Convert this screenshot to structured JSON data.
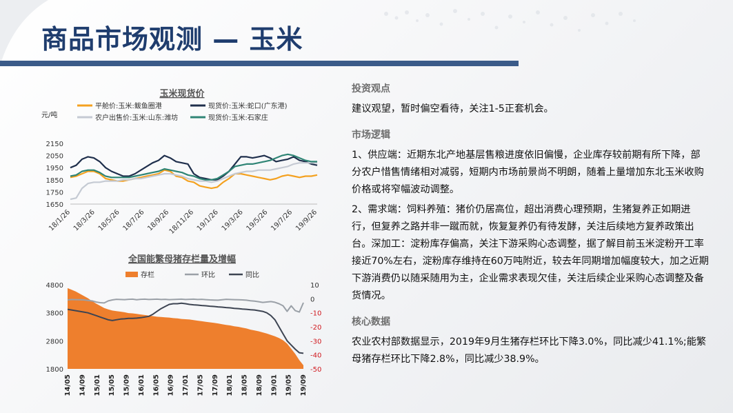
{
  "page": {
    "title": "商品市场观测 — 玉米"
  },
  "right_panel": {
    "sections": [
      {
        "title": "投资观点",
        "paragraphs": [
          "建议观望，暂时偏空看待，关注1-5正套机会。"
        ]
      },
      {
        "title": "市场逻辑",
        "paragraphs": [
          "1、供应端：近期东北产地基层售粮进度依旧偏慢，企业库存较前期有所下降，部分农户惜售情绪相对减弱，短期内市场前景尚不明朗，随着上量增加东北玉米收购价格或将窄幅波动调整。",
          "2、需求端：饲料养殖：猪价仍居高位，超出消费心理预期，生猪复养正如期进行，但复养之路并非一蹴而就，恢复复养仍有待发酵，关注后续地方复养政策出台。深加工：淀粉库存偏高，关注下游采购心态调整，据了解目前玉米淀粉开工率接近70%左右，淀粉库存维持在60万吨附近，较去年同期增加幅度较大，加之近期下游消费仍以随采随用为主，企业需求表现欠佳，关注后续企业采购心态调整及备货情况。"
        ]
      },
      {
        "title": "核心数据",
        "paragraphs": [
          "农业农村部数据显示，2019年9月生猪存栏环比下降3.0%，同比减少41.1%;能繁母猪存栏环比下降2.8%，同比减少38.9%。"
        ]
      }
    ]
  },
  "chart_data": [
    {
      "type": "line",
      "title": "玉米现货价",
      "ylabel": "元/吨",
      "ylim": [
        1650,
        2150
      ],
      "yticks": [
        1650,
        1750,
        1850,
        1950,
        2050,
        2150
      ],
      "xtick_labels": [
        "18/1/26",
        "18/3/26",
        "18/5/26",
        "18/7/26",
        "18/9/26",
        "18/11/26",
        "19/1/26",
        "19/3/26",
        "19/5/26",
        "19/7/26",
        "19/9/26"
      ],
      "series": [
        {
          "name": "平舱价:玉米:鲅鱼圈港",
          "color": "#f4a11f",
          "values": [
            1870,
            1880,
            1900,
            1920,
            1920,
            1900,
            1860,
            1850,
            1840,
            1840,
            1850,
            1860,
            1870,
            1880,
            1890,
            1900,
            1930,
            1920,
            1880,
            1870,
            1840,
            1830,
            1800,
            1790,
            1780,
            1790,
            1830,
            1860,
            1900,
            1900,
            1890,
            1880,
            1870,
            1860,
            1850,
            1860,
            1880,
            1890,
            1880,
            1870,
            1880,
            1880,
            1890
          ]
        },
        {
          "name": "现货价:玉米:蛇口(广东港)",
          "color": "#1f2f4c",
          "values": [
            1950,
            1970,
            2020,
            2040,
            2030,
            2000,
            1950,
            1920,
            1900,
            1880,
            1880,
            1900,
            1930,
            1960,
            1990,
            2010,
            2050,
            2030,
            2000,
            1990,
            1980,
            1900,
            1870,
            1860,
            1850,
            1850,
            1880,
            1920,
            1980,
            2040,
            2040,
            2030,
            2040,
            2050,
            2030,
            2000,
            2010,
            2020,
            2040,
            2010,
            2000,
            1980,
            1970
          ]
        },
        {
          "name": "农户出售价:玉米:山东:潍坊",
          "color": "#c5cad3",
          "values": [
            1690,
            1700,
            1780,
            1820,
            1830,
            1830,
            1840,
            1840,
            1840,
            1850,
            1850,
            1860,
            1860,
            1870,
            1880,
            1890,
            1900,
            1900,
            1890,
            1880,
            1860,
            1850,
            1840,
            1840,
            1830,
            1840,
            1860,
            1880,
            1900,
            1910,
            1920,
            1920,
            1930,
            1930,
            1930,
            1940,
            1950,
            1960,
            1980,
            1990,
            1990,
            1990,
            1990
          ]
        },
        {
          "name": "现货价:玉米:石家庄",
          "color": "#2f8575",
          "values": [
            1880,
            1890,
            1920,
            1930,
            1930,
            1910,
            1880,
            1870,
            1870,
            1870,
            1870,
            1880,
            1890,
            1900,
            1910,
            1920,
            1940,
            1930,
            1920,
            1910,
            1890,
            1880,
            1860,
            1850,
            1850,
            1860,
            1890,
            1920,
            1960,
            1970,
            1980,
            1980,
            1990,
            2000,
            2010,
            2030,
            2050,
            2060,
            2050,
            2030,
            2010,
            2000,
            2000
          ]
        }
      ]
    },
    {
      "type": "area",
      "title": "全国能繁母猪存栏量及增幅",
      "ylim": [
        1800,
        4800
      ],
      "yticks": [
        1800,
        2800,
        3800,
        4800
      ],
      "y2lim": [
        -50,
        10
      ],
      "y2ticks": [
        10,
        0,
        -10,
        -20,
        -30,
        -40,
        -50
      ],
      "xtick_labels": [
        "14/05",
        "14/09",
        "15/01",
        "15/05",
        "15/09",
        "16/01",
        "16/05",
        "16/09",
        "17/01",
        "17/05",
        "17/09",
        "18/01",
        "18/05",
        "18/09",
        "19/01",
        "19/05",
        "19/09"
      ],
      "series": [
        {
          "name": "存栏",
          "axis": "left",
          "color": "#ee7f2d",
          "values": [
            4680,
            4620,
            4560,
            4480,
            4400,
            4320,
            4220,
            4130,
            4050,
            3970,
            3920,
            3880,
            3860,
            3840,
            3820,
            3790,
            3780,
            3760,
            3740,
            3720,
            3700,
            3680,
            3660,
            3650,
            3640,
            3630,
            3610,
            3600,
            3580,
            3570,
            3560,
            3540,
            3520,
            3500,
            3480,
            3460,
            3440,
            3420,
            3390,
            3370,
            3350,
            3320,
            3300,
            3270,
            3240,
            3200,
            3170,
            3140,
            3100,
            3060,
            3010,
            2960,
            2900,
            2820,
            2700,
            2520,
            2330,
            2110,
            1930
          ]
        },
        {
          "name": "环比",
          "axis": "right",
          "color": "#9aa0a7",
          "values": [
            -0.8,
            -0.5,
            -0.6,
            -0.7,
            -0.8,
            -1.2,
            -1.5,
            -2.3,
            -2.8,
            -3.0,
            -1.5,
            -0.8,
            -0.4,
            -0.5,
            -0.6,
            -0.4,
            -0.3,
            -0.7,
            -0.4,
            -0.3,
            -0.5,
            -0.4,
            -0.3,
            -0.5,
            -0.4,
            -0.6,
            -0.5,
            -0.4,
            -0.3,
            -0.5,
            -0.4,
            -0.3,
            -0.5,
            -0.4,
            -0.6,
            -0.8,
            -0.9,
            -1.0,
            -0.7,
            -0.4,
            -0.5,
            -0.6,
            -0.7,
            -0.8,
            -1.0,
            -1.4,
            -1.7,
            -2.1,
            -2.6,
            -2.3,
            -2.0,
            -2.5,
            -3.5,
            -5.0,
            -9.0,
            -5.0,
            -8.5,
            -9.5,
            -2.8
          ]
        },
        {
          "name": "同比",
          "axis": "right",
          "color": "#3d4452",
          "values": [
            -7.5,
            -8.0,
            -8.5,
            -9.0,
            -9.5,
            -10.0,
            -11.0,
            -12.0,
            -13.0,
            -14.0,
            -15.0,
            -15.5,
            -15.0,
            -14.5,
            -14.3,
            -14.0,
            -14.0,
            -13.8,
            -13.5,
            -13.0,
            -12.5,
            -11.0,
            -9.0,
            -7.0,
            -5.5,
            -4.0,
            -3.5,
            -3.5,
            -3.2,
            -3.5,
            -4.0,
            -4.3,
            -4.5,
            -4.8,
            -5.0,
            -5.3,
            -5.5,
            -5.8,
            -6.0,
            -6.3,
            -6.5,
            -6.8,
            -7.0,
            -7.3,
            -7.5,
            -7.8,
            -8.0,
            -8.5,
            -9.0,
            -10.0,
            -12.0,
            -15.0,
            -20.0,
            -25.0,
            -30.0,
            -33.0,
            -36.0,
            -38.5,
            -38.9
          ]
        }
      ]
    }
  ]
}
